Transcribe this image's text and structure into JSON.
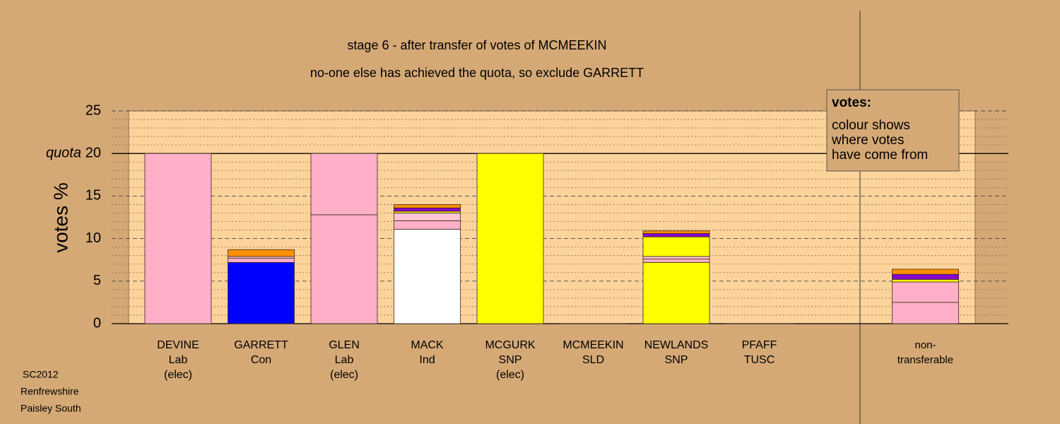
{
  "chart_data": {
    "type": "bar",
    "stacked": true,
    "title": "stage 6 - after transfer of votes of MCMEEKIN",
    "subtitle": "no-one else has achieved the quota, so exclude GARRETT",
    "y_label": "votes %",
    "quota": {
      "value": 20,
      "label": "quota"
    },
    "legend": {
      "title": "votes:",
      "lines": [
        "colour shows",
        "where votes",
        "have come from"
      ]
    },
    "footer": [
      "SC2012",
      "Renfrewshire",
      "Paisley South"
    ],
    "categories": [
      [
        "DEVINE",
        "Lab",
        "(elec)"
      ],
      [
        "GARRETT",
        "Con"
      ],
      [
        "GLEN",
        "Lab",
        "(elec)"
      ],
      [
        "MACK",
        "Ind"
      ],
      [
        "MCGURK",
        "SNP",
        "(elec)"
      ],
      [
        "MCMEEKIN",
        "SLD"
      ],
      [
        "NEWLANDS",
        "SNP"
      ],
      [
        "PFAFF",
        "TUSC"
      ],
      [
        "non-",
        "transferable"
      ]
    ],
    "series": [
      {
        "colors": [
          "#ffb0c8",
          "#0000ff",
          "#ffb0c8",
          "#ffffff",
          "#ffff00",
          "#ff9000",
          "#ffff00",
          "#8800cc",
          "#ffb0c8"
        ],
        "values": [
          20,
          7.2,
          12.8,
          11.1,
          20,
          0,
          7.2,
          0,
          2.5
        ]
      },
      {
        "color": "#ffb0c8",
        "values": [
          null,
          0.5,
          7.2,
          1.0,
          null,
          null,
          0.4,
          null,
          2.4
        ]
      },
      {
        "color": "#ffc4d6",
        "values": [
          null,
          0.2,
          null,
          0.9,
          null,
          null,
          0.3,
          null,
          null
        ]
      },
      {
        "color": "#ffff00",
        "values": [
          null,
          null,
          null,
          0.2,
          null,
          null,
          2.3,
          null,
          0.3
        ]
      },
      {
        "color": "#8800cc",
        "values": [
          null,
          null,
          null,
          0.4,
          null,
          null,
          0.4,
          null,
          0.6
        ]
      },
      {
        "color": "#ff9000",
        "values": [
          null,
          0.8,
          null,
          0.4,
          null,
          null,
          0.3,
          null,
          0.6
        ]
      }
    ],
    "ylim": [
      0,
      25
    ],
    "yticks": [
      0,
      5,
      10,
      15,
      20,
      25
    ],
    "minor_yticks": [
      1,
      2,
      3,
      4,
      6,
      7,
      8,
      9,
      11,
      12,
      13,
      14,
      16,
      17,
      18,
      19,
      21,
      22,
      23,
      24
    ],
    "grid": true
  }
}
